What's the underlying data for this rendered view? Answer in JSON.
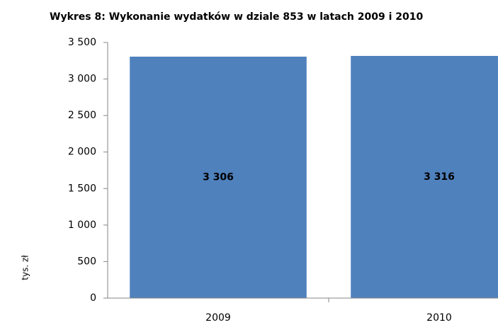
{
  "chart_data": {
    "type": "bar",
    "title": "Wykres 8: Wykonanie wydatków w dziale 853 w latach 2009 i 2010",
    "y_label": "tys. zł",
    "categories": [
      "2009",
      "2010"
    ],
    "values": [
      3306,
      3316
    ],
    "value_labels": [
      "3 306",
      "3 316"
    ],
    "color": "#4f81bd",
    "ylim": [
      0,
      3500
    ],
    "yticks": [
      0,
      500,
      {
        "value": 1000,
        "label": "1 000"
      },
      {
        "value": 1500,
        "label": "1 500"
      },
      {
        "value": 2000,
        "label": "2 000"
      },
      {
        "value": 2500,
        "label": "2 500"
      },
      {
        "value": 3000,
        "label": "3 000"
      },
      {
        "value": 3500,
        "label": "3 500"
      }
    ],
    "grid": false
  }
}
